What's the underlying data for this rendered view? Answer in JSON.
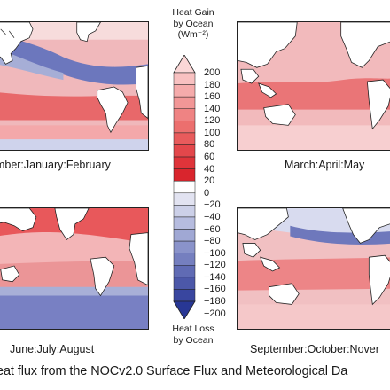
{
  "panels": [
    {
      "id": "djf",
      "label": "December:January:February",
      "shown_label": "ember:January:February"
    },
    {
      "id": "mam",
      "label": "March:April:May"
    },
    {
      "id": "jja",
      "label": "June:July:August"
    },
    {
      "id": "son",
      "label": "September:October:November",
      "shown_label": "September:October:Nover"
    }
  ],
  "colorbar": {
    "top_title": [
      "Heat Gain",
      "by Ocean",
      "(Wm⁻²)"
    ],
    "bottom_title": [
      "Heat Loss",
      "by Ocean"
    ],
    "ticks": [
      "200",
      "180",
      "160",
      "140",
      "120",
      "100",
      "80",
      "60",
      "40",
      "20",
      "0",
      "−20",
      "−40",
      "−60",
      "−80",
      "−100",
      "−120",
      "−140",
      "−160",
      "−180",
      "−200"
    ],
    "colors_gain": [
      "#d9252d",
      "#df343a",
      "#e3474b",
      "#e85b5c",
      "#ec6f6e",
      "#ef8383",
      "#f29797",
      "#f5abab",
      "#f8c1c1",
      "#fbd7d7"
    ],
    "color_zero": "#ffffff",
    "colors_loss": [
      "#e2e3f1",
      "#ccd0e8",
      "#b6bcdf",
      "#a0a8d4",
      "#8a93ca",
      "#757fbf",
      "#606bb4",
      "#4c58a9",
      "#39469f",
      "#283795"
    ]
  },
  "caption": "eat flux from the NOCv2.0 Surface Flux and Meteorological Da",
  "colors": {
    "land": "#ffffff",
    "coast": "#222222"
  }
}
